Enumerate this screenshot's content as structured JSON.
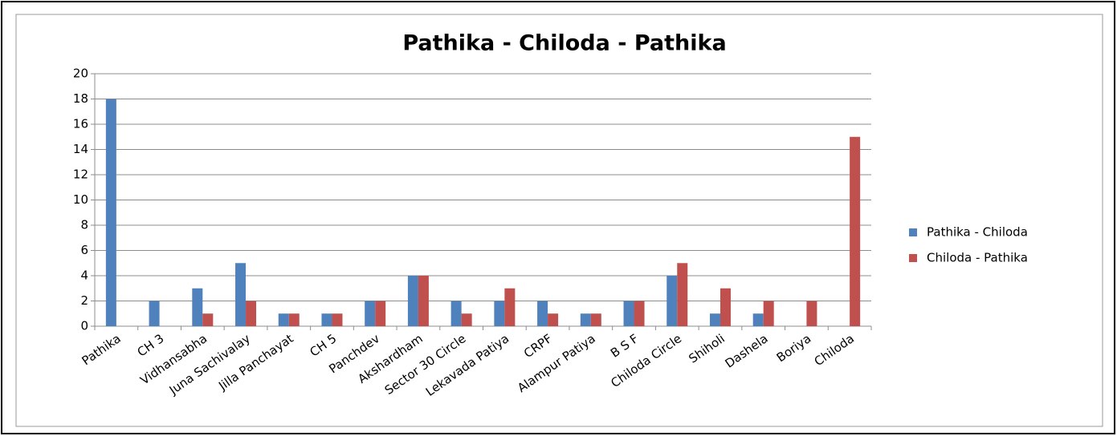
{
  "chart_data": {
    "type": "bar",
    "title": "Pathika - Chiloda - Pathika",
    "categories": [
      "Pathika",
      "CH 3",
      "Vidhansabha",
      "Juna Sachivalay",
      "Jilla Panchayat",
      "CH 5",
      "Panchdev",
      "Akshardham",
      "Sector 30 Circle",
      "Lekavada Patiya",
      "CRPF",
      "Alampur Patiya",
      "B S F",
      "Chiloda Circle",
      "Shiholi",
      "Dashela",
      "Boriya",
      "Chiloda"
    ],
    "series": [
      {
        "name": "Pathika - Chiloda",
        "color": "#4f81bd",
        "values": [
          18,
          2,
          3,
          5,
          1,
          1,
          2,
          4,
          2,
          2,
          2,
          1,
          2,
          4,
          1,
          1,
          0,
          0
        ]
      },
      {
        "name": "Chiloda - Pathika",
        "color": "#c0504d",
        "values": [
          0,
          0,
          1,
          2,
          1,
          1,
          2,
          4,
          1,
          3,
          1,
          1,
          2,
          5,
          3,
          2,
          2,
          15
        ]
      }
    ],
    "ylim": [
      0,
      20
    ],
    "yticks": [
      0,
      2,
      4,
      6,
      8,
      10,
      12,
      14,
      16,
      18,
      20
    ],
    "grid": true,
    "legend": "right"
  }
}
